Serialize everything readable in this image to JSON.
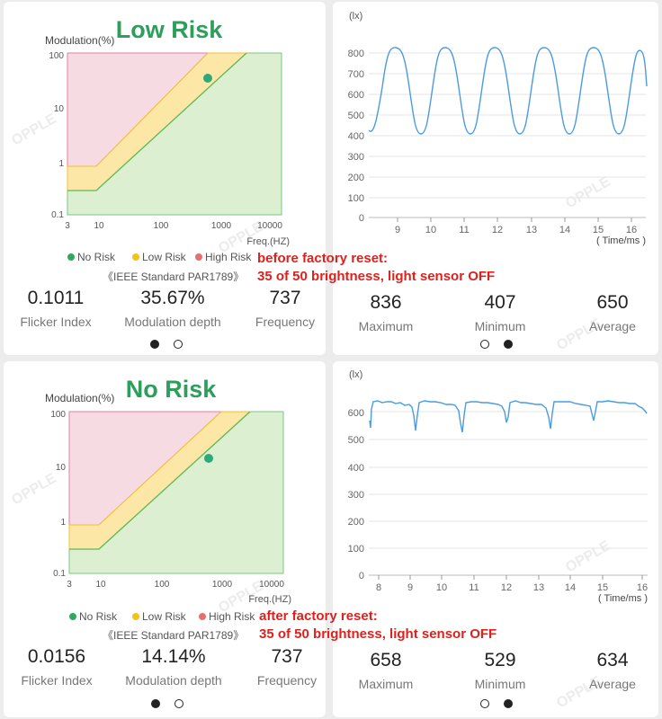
{
  "panels": [
    {
      "risk_title": "Low Risk",
      "risk_color": "#2e9e5b",
      "y_axis_title": "Modulation(%)",
      "x_axis_title": "Freq.(HZ)",
      "y_ticks": [
        "100",
        "10",
        "1",
        "0.1"
      ],
      "x_ticks": [
        "3",
        "10",
        "100",
        "1000",
        "10000"
      ],
      "legend": [
        "No Risk",
        "Low Risk",
        "High Risk"
      ],
      "standard": "《IEEE Standard PAR1789》",
      "point": {
        "freq_hz": 737,
        "modulation_pct": 35.67
      },
      "stats": [
        {
          "value": "0.1011",
          "label": "Flicker Index"
        },
        {
          "value": "35.67%",
          "label": "Modulation depth"
        },
        {
          "value": "737",
          "label": "Frequency"
        }
      ],
      "annotation": [
        "before factory reset:",
        "35 of 50 brightness, light sensor OFF"
      ],
      "watermark": "OPPLE",
      "page_indicator": {
        "active": 0,
        "count": 2
      },
      "wave": {
        "y_unit": "(lx)",
        "x_unit": "( Time/ms )",
        "y_ticks": [
          "800",
          "700",
          "600",
          "500",
          "400",
          "300",
          "200",
          "100",
          "0"
        ],
        "x_ticks": [
          "9",
          "10",
          "11",
          "12",
          "13",
          "14",
          "15",
          "16"
        ],
        "stats": [
          {
            "value": "836",
            "label": "Maximum"
          },
          {
            "value": "407",
            "label": "Minimum"
          },
          {
            "value": "650",
            "label": "Average"
          }
        ],
        "page_indicator": {
          "active": 1,
          "count": 2
        }
      }
    },
    {
      "risk_title": "No Risk",
      "risk_color": "#2e9e5b",
      "y_axis_title": "Modulation(%)",
      "x_axis_title": "Freq.(HZ)",
      "y_ticks": [
        "100",
        "10",
        "1",
        "0.1"
      ],
      "x_ticks": [
        "3",
        "10",
        "100",
        "1000",
        "10000"
      ],
      "legend": [
        "No Risk",
        "Low Risk",
        "High Risk"
      ],
      "standard": "《IEEE Standard PAR1789》",
      "point": {
        "freq_hz": 737,
        "modulation_pct": 14.14
      },
      "stats": [
        {
          "value": "0.0156",
          "label": "Flicker Index"
        },
        {
          "value": "14.14%",
          "label": "Modulation depth"
        },
        {
          "value": "737",
          "label": "Frequency"
        }
      ],
      "annotation": [
        "after factory reset:",
        "35 of 50 brightness, light sensor OFF"
      ],
      "watermark": "OPPLE",
      "page_indicator": {
        "active": 0,
        "count": 2
      },
      "wave": {
        "y_unit": "(lx)",
        "x_unit": "( Time/ms )",
        "y_ticks": [
          "600",
          "500",
          "400",
          "300",
          "200",
          "100",
          "0"
        ],
        "x_ticks": [
          "8",
          "9",
          "10",
          "11",
          "12",
          "13",
          "14",
          "15",
          "16"
        ],
        "stats": [
          {
            "value": "658",
            "label": "Maximum"
          },
          {
            "value": "529",
            "label": "Minimum"
          },
          {
            "value": "634",
            "label": "Average"
          }
        ],
        "page_indicator": {
          "active": 1,
          "count": 2
        }
      }
    }
  ],
  "colors": {
    "no_risk": "#2eaa5c",
    "low_risk": "#f2c21b",
    "high_risk": "#e8706a",
    "no_risk_fill": "#dcefd0",
    "low_risk_fill": "#fdeab0",
    "high_risk_fill": "#f7dbe3",
    "wave_line": "#4a9be0",
    "point": "#2eaa7a"
  }
}
